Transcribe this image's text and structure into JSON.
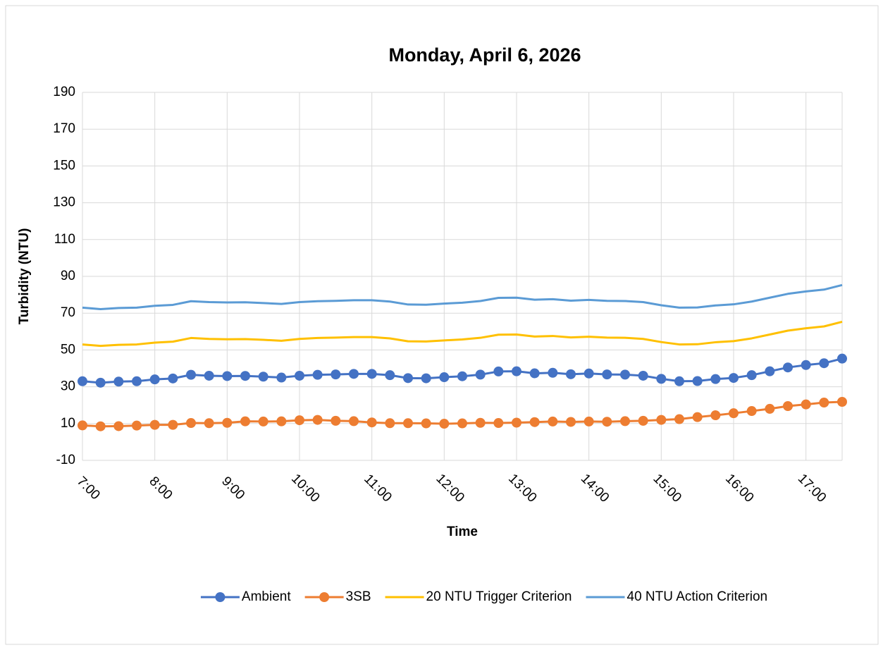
{
  "chart_data": {
    "type": "line",
    "title": "Monday, April 6, 2026",
    "x_label": "Time",
    "y_label": "Turbidity (NTU)",
    "categories": [
      "7:00",
      null,
      null,
      null,
      "8:00",
      null,
      null,
      null,
      "9:00",
      null,
      null,
      null,
      "10:00",
      null,
      null,
      null,
      "11:00",
      null,
      null,
      null,
      "12:00",
      null,
      null,
      null,
      "13:00",
      null,
      null,
      null,
      "14:00",
      null,
      null,
      null,
      "15:00",
      null,
      null,
      null,
      "16:00",
      null,
      null,
      null,
      "17:00",
      null,
      null
    ],
    "ylim": [
      -10,
      190
    ],
    "yticks": [
      -10,
      10,
      30,
      50,
      70,
      90,
      110,
      130,
      150,
      170,
      190
    ],
    "grid": true,
    "legend": "bottom",
    "series": [
      {
        "name": "Ambient",
        "color": "#4472c4",
        "marker": true,
        "values": [
          33,
          32.2,
          32.8,
          33,
          34,
          34.5,
          36.5,
          36,
          35.8,
          35.9,
          35.5,
          35,
          36,
          36.5,
          36.7,
          37,
          37,
          36.3,
          34.7,
          34.6,
          35.2,
          35.7,
          36.6,
          38.3,
          38.4,
          37.3,
          37.6,
          36.8,
          37.2,
          36.7,
          36.6,
          36,
          34.3,
          33,
          33.1,
          34.2,
          34.8,
          36.3,
          38.4,
          40.5,
          41.8,
          42.8,
          45.3
        ]
      },
      {
        "name": "3SB",
        "color": "#ed7d31",
        "marker": true,
        "values": [
          9,
          8.5,
          8.6,
          8.9,
          9.3,
          9.3,
          10.3,
          10.2,
          10.4,
          11.2,
          11.1,
          11.2,
          11.8,
          12,
          11.5,
          11.3,
          10.6,
          10.2,
          10.2,
          10.1,
          9.9,
          10.1,
          10.4,
          10.3,
          10.5,
          10.8,
          11.1,
          10.9,
          11.1,
          11,
          11.3,
          11.5,
          12,
          12.4,
          13.5,
          14.5,
          15.6,
          16.8,
          18,
          19.5,
          20.4,
          21.4,
          21.8
        ]
      },
      {
        "name": "20 NTU Trigger Criterion",
        "color": "#ffc000",
        "marker": false,
        "values": [
          53,
          52.2,
          52.8,
          53,
          54,
          54.5,
          56.5,
          56,
          55.8,
          55.9,
          55.5,
          55,
          56,
          56.5,
          56.7,
          57,
          57,
          56.3,
          54.7,
          54.6,
          55.2,
          55.7,
          56.6,
          58.3,
          58.4,
          57.3,
          57.6,
          56.8,
          57.2,
          56.7,
          56.6,
          56,
          54.3,
          53,
          53.1,
          54.2,
          54.8,
          56.3,
          58.4,
          60.5,
          61.8,
          62.8,
          65.3
        ]
      },
      {
        "name": "40 NTU Action Criterion",
        "color": "#5b9bd5",
        "marker": false,
        "values": [
          73,
          72.2,
          72.8,
          73,
          74,
          74.5,
          76.5,
          76,
          75.8,
          75.9,
          75.5,
          75,
          76,
          76.5,
          76.7,
          77,
          77,
          76.3,
          74.7,
          74.6,
          75.2,
          75.7,
          76.6,
          78.3,
          78.4,
          77.3,
          77.6,
          76.8,
          77.2,
          76.7,
          76.6,
          76,
          74.3,
          73,
          73.1,
          74.2,
          74.8,
          76.3,
          78.4,
          80.5,
          81.8,
          82.8,
          85.3
        ]
      }
    ]
  }
}
